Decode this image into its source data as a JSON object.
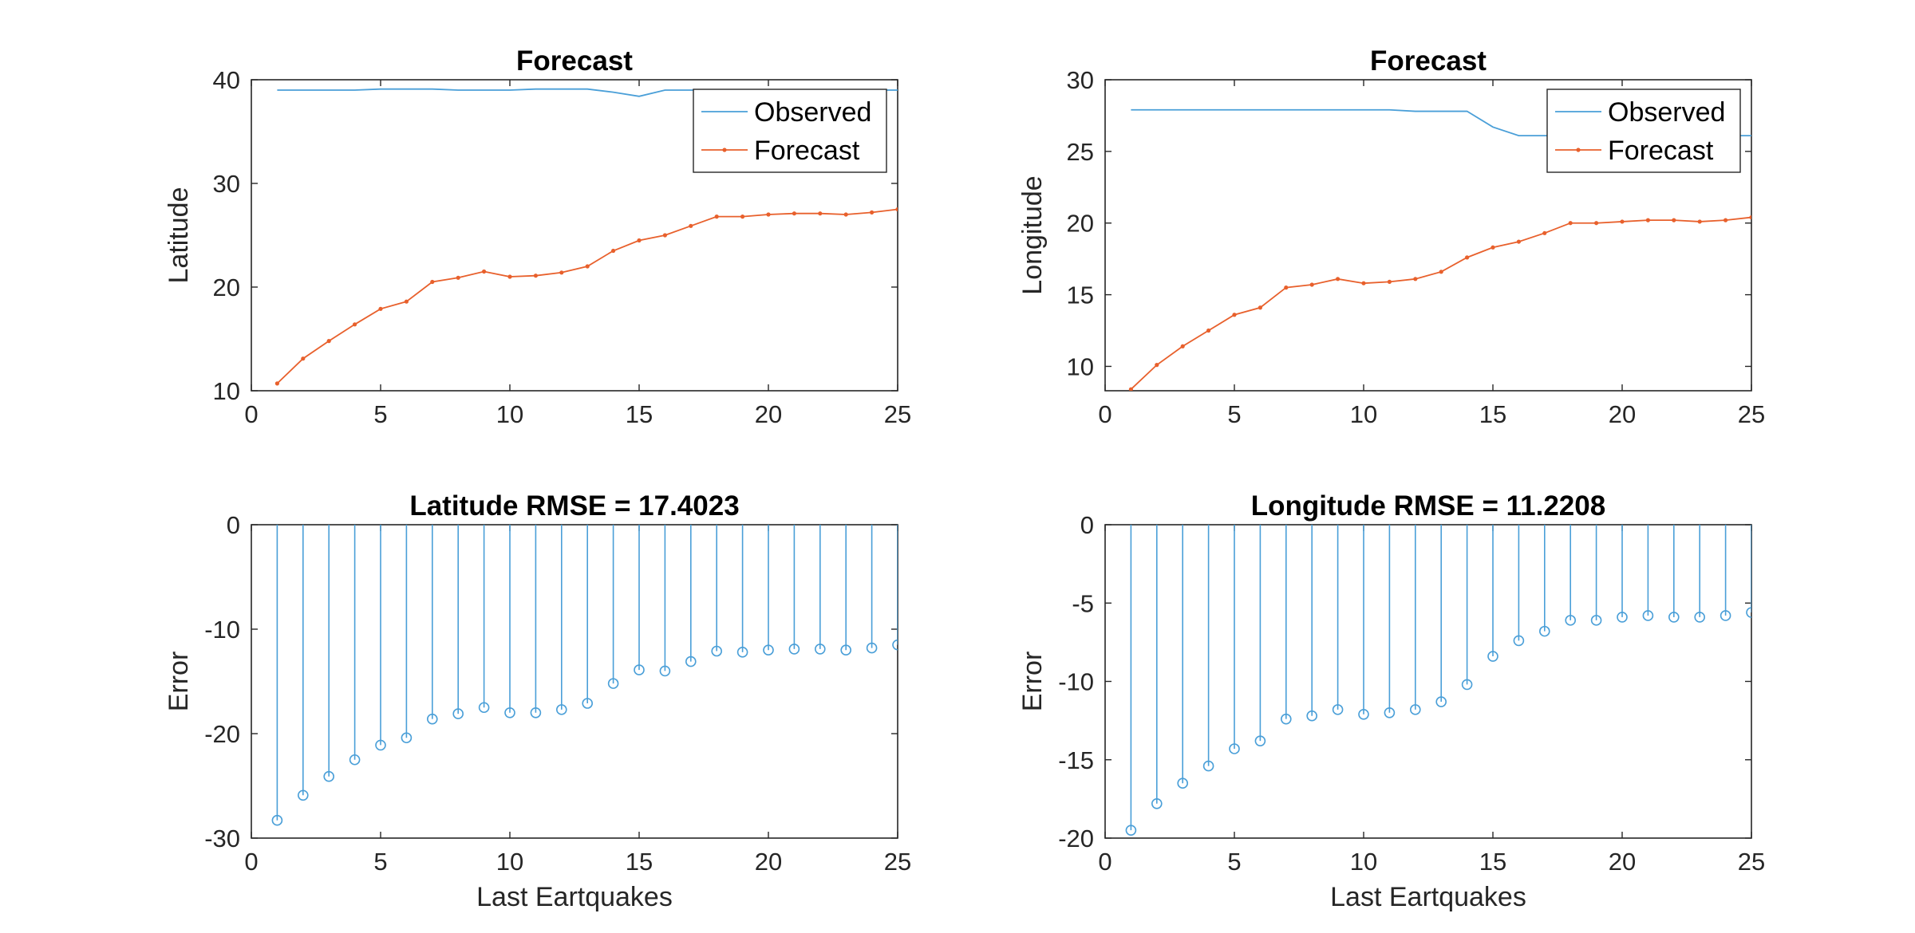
{
  "chart_data": [
    {
      "type": "line",
      "title": "Forecast",
      "xlabel": "",
      "ylabel": "Latitude",
      "xlim": [
        0,
        25
      ],
      "ylim": [
        10,
        40
      ],
      "xticks": [
        0,
        5,
        10,
        15,
        20,
        25
      ],
      "yticks": [
        10,
        20,
        30,
        40
      ],
      "grid": false,
      "legend": {
        "position": "top-right",
        "entries": [
          "Observed",
          "Forecast"
        ]
      },
      "series": [
        {
          "name": "Observed",
          "color": "#4a9fd8",
          "marker": "none",
          "x": [
            1,
            2,
            3,
            4,
            5,
            6,
            7,
            8,
            9,
            10,
            11,
            12,
            13,
            14,
            15,
            16,
            17,
            18,
            19,
            20,
            21,
            22,
            23,
            24,
            25
          ],
          "y": [
            39.0,
            39.0,
            39.0,
            39.0,
            39.1,
            39.1,
            39.1,
            39.0,
            39.0,
            39.0,
            39.1,
            39.1,
            39.1,
            38.8,
            38.4,
            39.0,
            39.0,
            39.0,
            39.0,
            39.0,
            39.0,
            39.0,
            39.0,
            39.0,
            39.0
          ]
        },
        {
          "name": "Forecast",
          "color": "#e8602c",
          "marker": "point",
          "x": [
            1,
            2,
            3,
            4,
            5,
            6,
            7,
            8,
            9,
            10,
            11,
            12,
            13,
            14,
            15,
            16,
            17,
            18,
            19,
            20,
            21,
            22,
            23,
            24,
            25
          ],
          "y": [
            10.7,
            13.1,
            14.8,
            16.4,
            17.9,
            18.6,
            20.5,
            20.9,
            21.5,
            21.0,
            21.1,
            21.4,
            22.0,
            23.5,
            24.5,
            25.0,
            25.9,
            26.8,
            26.8,
            27.0,
            27.1,
            27.1,
            27.0,
            27.2,
            27.5
          ]
        }
      ]
    },
    {
      "type": "line",
      "title": "Forecast",
      "xlabel": "",
      "ylabel": "Longitude",
      "xlim": [
        0,
        25
      ],
      "ylim": [
        8.3,
        30
      ],
      "xticks": [
        0,
        5,
        10,
        15,
        20,
        25
      ],
      "yticks": [
        10,
        15,
        20,
        25,
        30
      ],
      "grid": false,
      "legend": {
        "position": "top-right",
        "entries": [
          "Observed",
          "Forecast"
        ]
      },
      "series": [
        {
          "name": "Observed",
          "color": "#4a9fd8",
          "marker": "none",
          "x": [
            1,
            2,
            3,
            4,
            5,
            6,
            7,
            8,
            9,
            10,
            11,
            12,
            13,
            14,
            15,
            16,
            17,
            18,
            19,
            20,
            21,
            22,
            23,
            24,
            25
          ],
          "y": [
            27.9,
            27.9,
            27.9,
            27.9,
            27.9,
            27.9,
            27.9,
            27.9,
            27.9,
            27.9,
            27.9,
            27.8,
            27.8,
            27.8,
            26.7,
            26.1,
            26.1,
            26.1,
            26.1,
            26.1,
            26.1,
            26.1,
            26.1,
            26.1,
            26.1
          ]
        },
        {
          "name": "Forecast",
          "color": "#e8602c",
          "marker": "point",
          "x": [
            1,
            2,
            3,
            4,
            5,
            6,
            7,
            8,
            9,
            10,
            11,
            12,
            13,
            14,
            15,
            16,
            17,
            18,
            19,
            20,
            21,
            22,
            23,
            24,
            25
          ],
          "y": [
            8.4,
            10.1,
            11.4,
            12.5,
            13.6,
            14.1,
            15.5,
            15.7,
            16.1,
            15.8,
            15.9,
            16.1,
            16.6,
            17.6,
            18.3,
            18.7,
            19.3,
            20.0,
            20.0,
            20.1,
            20.2,
            20.2,
            20.1,
            20.2,
            20.4
          ]
        }
      ]
    },
    {
      "type": "stem",
      "title": "Latitude RMSE = 17.4023",
      "xlabel": "Last Eartquakes",
      "ylabel": "Error",
      "xlim": [
        0,
        25
      ],
      "ylim": [
        -30,
        0
      ],
      "xticks": [
        0,
        5,
        10,
        15,
        20,
        25
      ],
      "yticks": [
        -30,
        -20,
        -10,
        0
      ],
      "grid": false,
      "series": [
        {
          "color": "#4a9fd8",
          "marker": "circle",
          "x": [
            1,
            2,
            3,
            4,
            5,
            6,
            7,
            8,
            9,
            10,
            11,
            12,
            13,
            14,
            15,
            16,
            17,
            18,
            19,
            20,
            21,
            22,
            23,
            24,
            25
          ],
          "y": [
            -28.3,
            -25.9,
            -24.1,
            -22.5,
            -21.1,
            -20.4,
            -18.6,
            -18.1,
            -17.5,
            -18.0,
            -18.0,
            -17.7,
            -17.1,
            -15.2,
            -13.9,
            -14.0,
            -13.1,
            -12.1,
            -12.2,
            -12.0,
            -11.9,
            -11.9,
            -12.0,
            -11.8,
            -11.5
          ]
        }
      ]
    },
    {
      "type": "stem",
      "title": "Longitude RMSE = 11.2208",
      "xlabel": "Last Eartquakes",
      "ylabel": "Error",
      "xlim": [
        0,
        25
      ],
      "ylim": [
        -20,
        0
      ],
      "xticks": [
        0,
        5,
        10,
        15,
        20,
        25
      ],
      "yticks": [
        -20,
        -15,
        -10,
        -5,
        0
      ],
      "grid": false,
      "series": [
        {
          "color": "#4a9fd8",
          "marker": "circle",
          "x": [
            1,
            2,
            3,
            4,
            5,
            6,
            7,
            8,
            9,
            10,
            11,
            12,
            13,
            14,
            15,
            16,
            17,
            18,
            19,
            20,
            21,
            22,
            23,
            24,
            25
          ],
          "y": [
            -19.5,
            -17.8,
            -16.5,
            -15.4,
            -14.3,
            -13.8,
            -12.4,
            -12.2,
            -11.8,
            -12.1,
            -12.0,
            -11.8,
            -11.3,
            -10.2,
            -8.4,
            -7.4,
            -6.8,
            -6.1,
            -6.1,
            -5.9,
            -5.8,
            -5.9,
            -5.9,
            -5.8,
            -5.6
          ]
        }
      ]
    }
  ]
}
